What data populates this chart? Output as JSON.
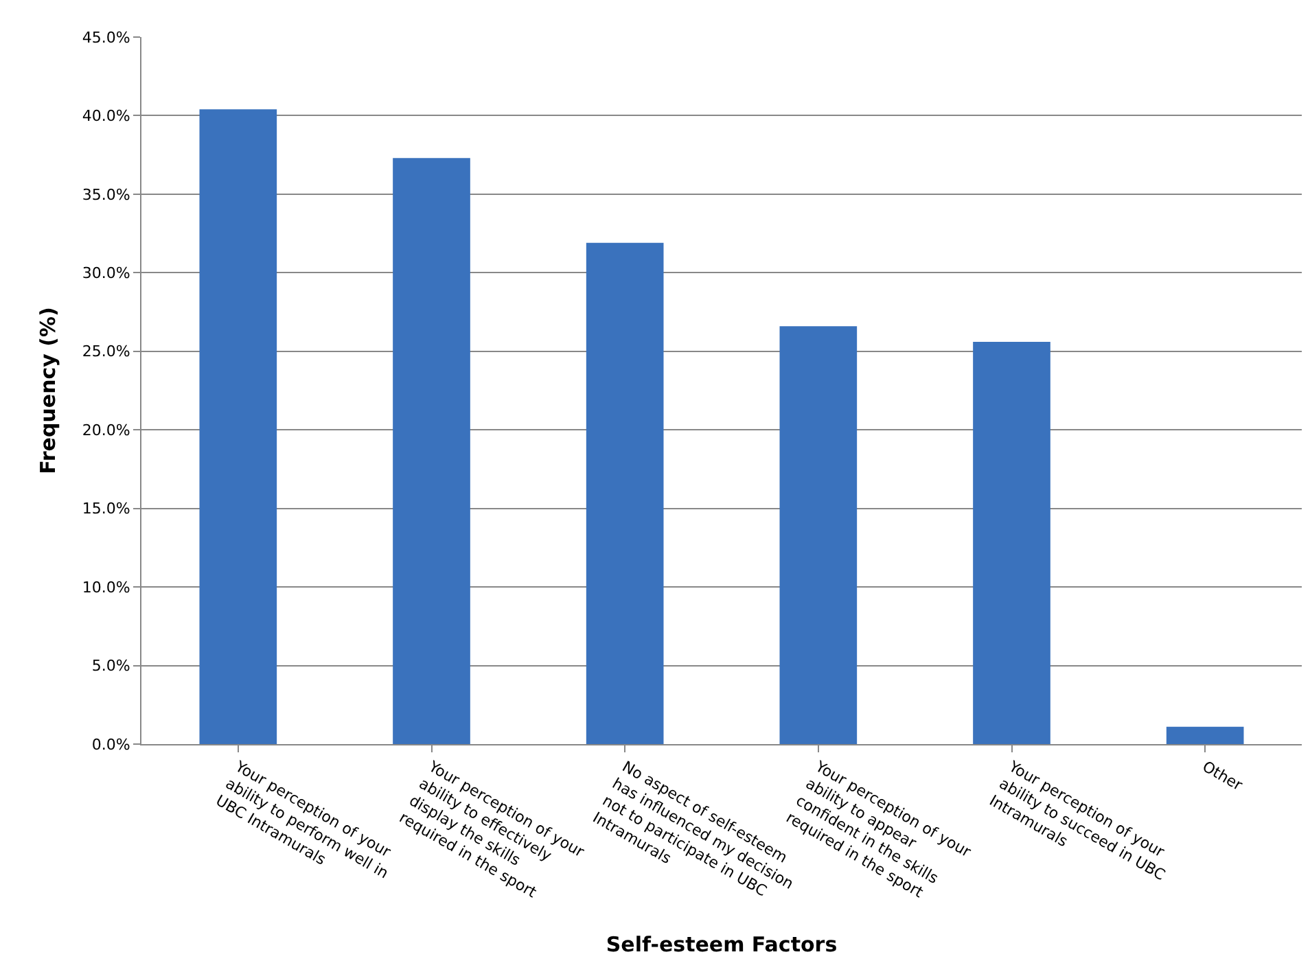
{
  "chart_data": {
    "type": "bar",
    "xlabel": "Self-esteem Factors",
    "ylabel": "Frequency (%)",
    "categories": [
      "Your perception of your ability to perform well in UBC Intramurals",
      "Your perception of your ability to effectively display the skills required in the sport",
      "No aspect of self-esteem has influenced my decision not to participate in UBC Intramurals",
      "Your perception of your ability to appear confident in the skills required in the sport",
      "Your perception of your ability to succeed in UBC Intramurals",
      "Other"
    ],
    "values": [
      40.4,
      37.3,
      31.9,
      26.6,
      25.6,
      1.1
    ],
    "color": "#3a72bd",
    "ylim": [
      0,
      45
    ],
    "yticks": [
      {
        "value": 0,
        "label": "0.0%"
      },
      {
        "value": 5,
        "label": "5.0%"
      },
      {
        "value": 10,
        "label": "10.0%"
      },
      {
        "value": 15,
        "label": "15.0%"
      },
      {
        "value": 20,
        "label": "20.0%"
      },
      {
        "value": 25,
        "label": "25.0%"
      },
      {
        "value": 30,
        "label": "30.0%"
      },
      {
        "value": 35,
        "label": "35.0%"
      },
      {
        "value": 40,
        "label": "40.0%"
      },
      {
        "value": 45,
        "label": "45.0%"
      }
    ],
    "grid": "y",
    "legend": false
  }
}
